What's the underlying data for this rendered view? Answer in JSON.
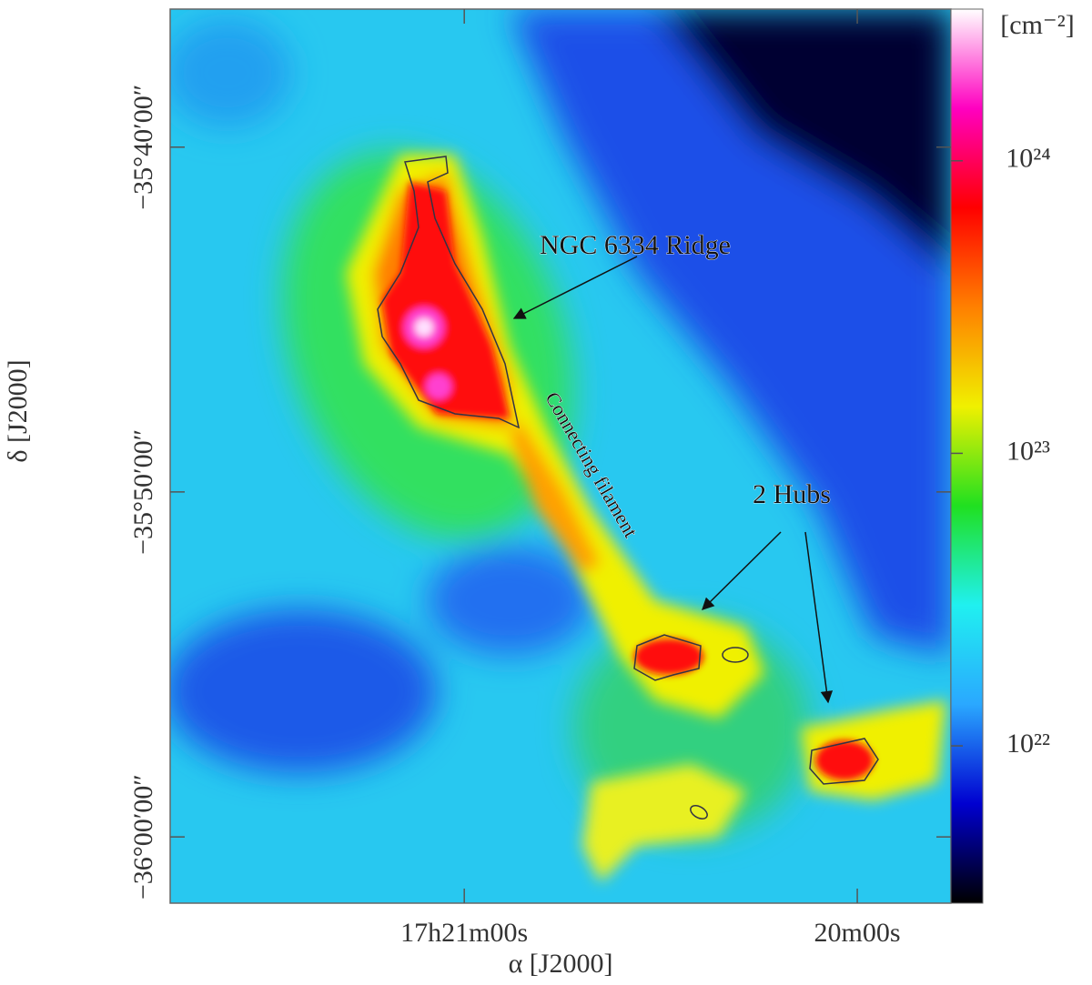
{
  "chart_data": {
    "type": "image",
    "annotations": [
      "NGC 6334 Ridge",
      "Connecting filament",
      "2 Hubs"
    ],
    "x_label": "α [J2000]",
    "y_label": "δ [J2000]",
    "xlim": [
      62504.9,
      62385.7
    ],
    "xticks": [
      {
        "value": 62460,
        "label": "17h21m00s"
      },
      {
        "value": 62400,
        "label": "20m00s"
      }
    ],
    "ylim": [
      -36.032,
      -35.6
    ],
    "yticks": [
      {
        "value": -35.6667,
        "label": "−35°40′00″"
      },
      {
        "value": -35.8333,
        "label": "−35°50′00″"
      },
      {
        "value": -36.0,
        "label": "−36°00′00″"
      }
    ],
    "colorbar": {
      "label": "[cm⁻²]",
      "log": true,
      "clim": [
        2.9e+21,
        3.3e+24
      ],
      "ticks": [
        {
          "value": 1e+22,
          "label": "10²²"
        },
        {
          "value": 1e+23,
          "label": "10²³"
        },
        {
          "value": 1e+24,
          "label": "10²⁴"
        }
      ],
      "colormap": [
        "#000000",
        "#0000d0",
        "#2aa8ff",
        "#20f0f0",
        "#20e020",
        "#f0f000",
        "#ff8000",
        "#ff0000",
        "#ff00c0",
        "#ffffff"
      ]
    }
  }
}
